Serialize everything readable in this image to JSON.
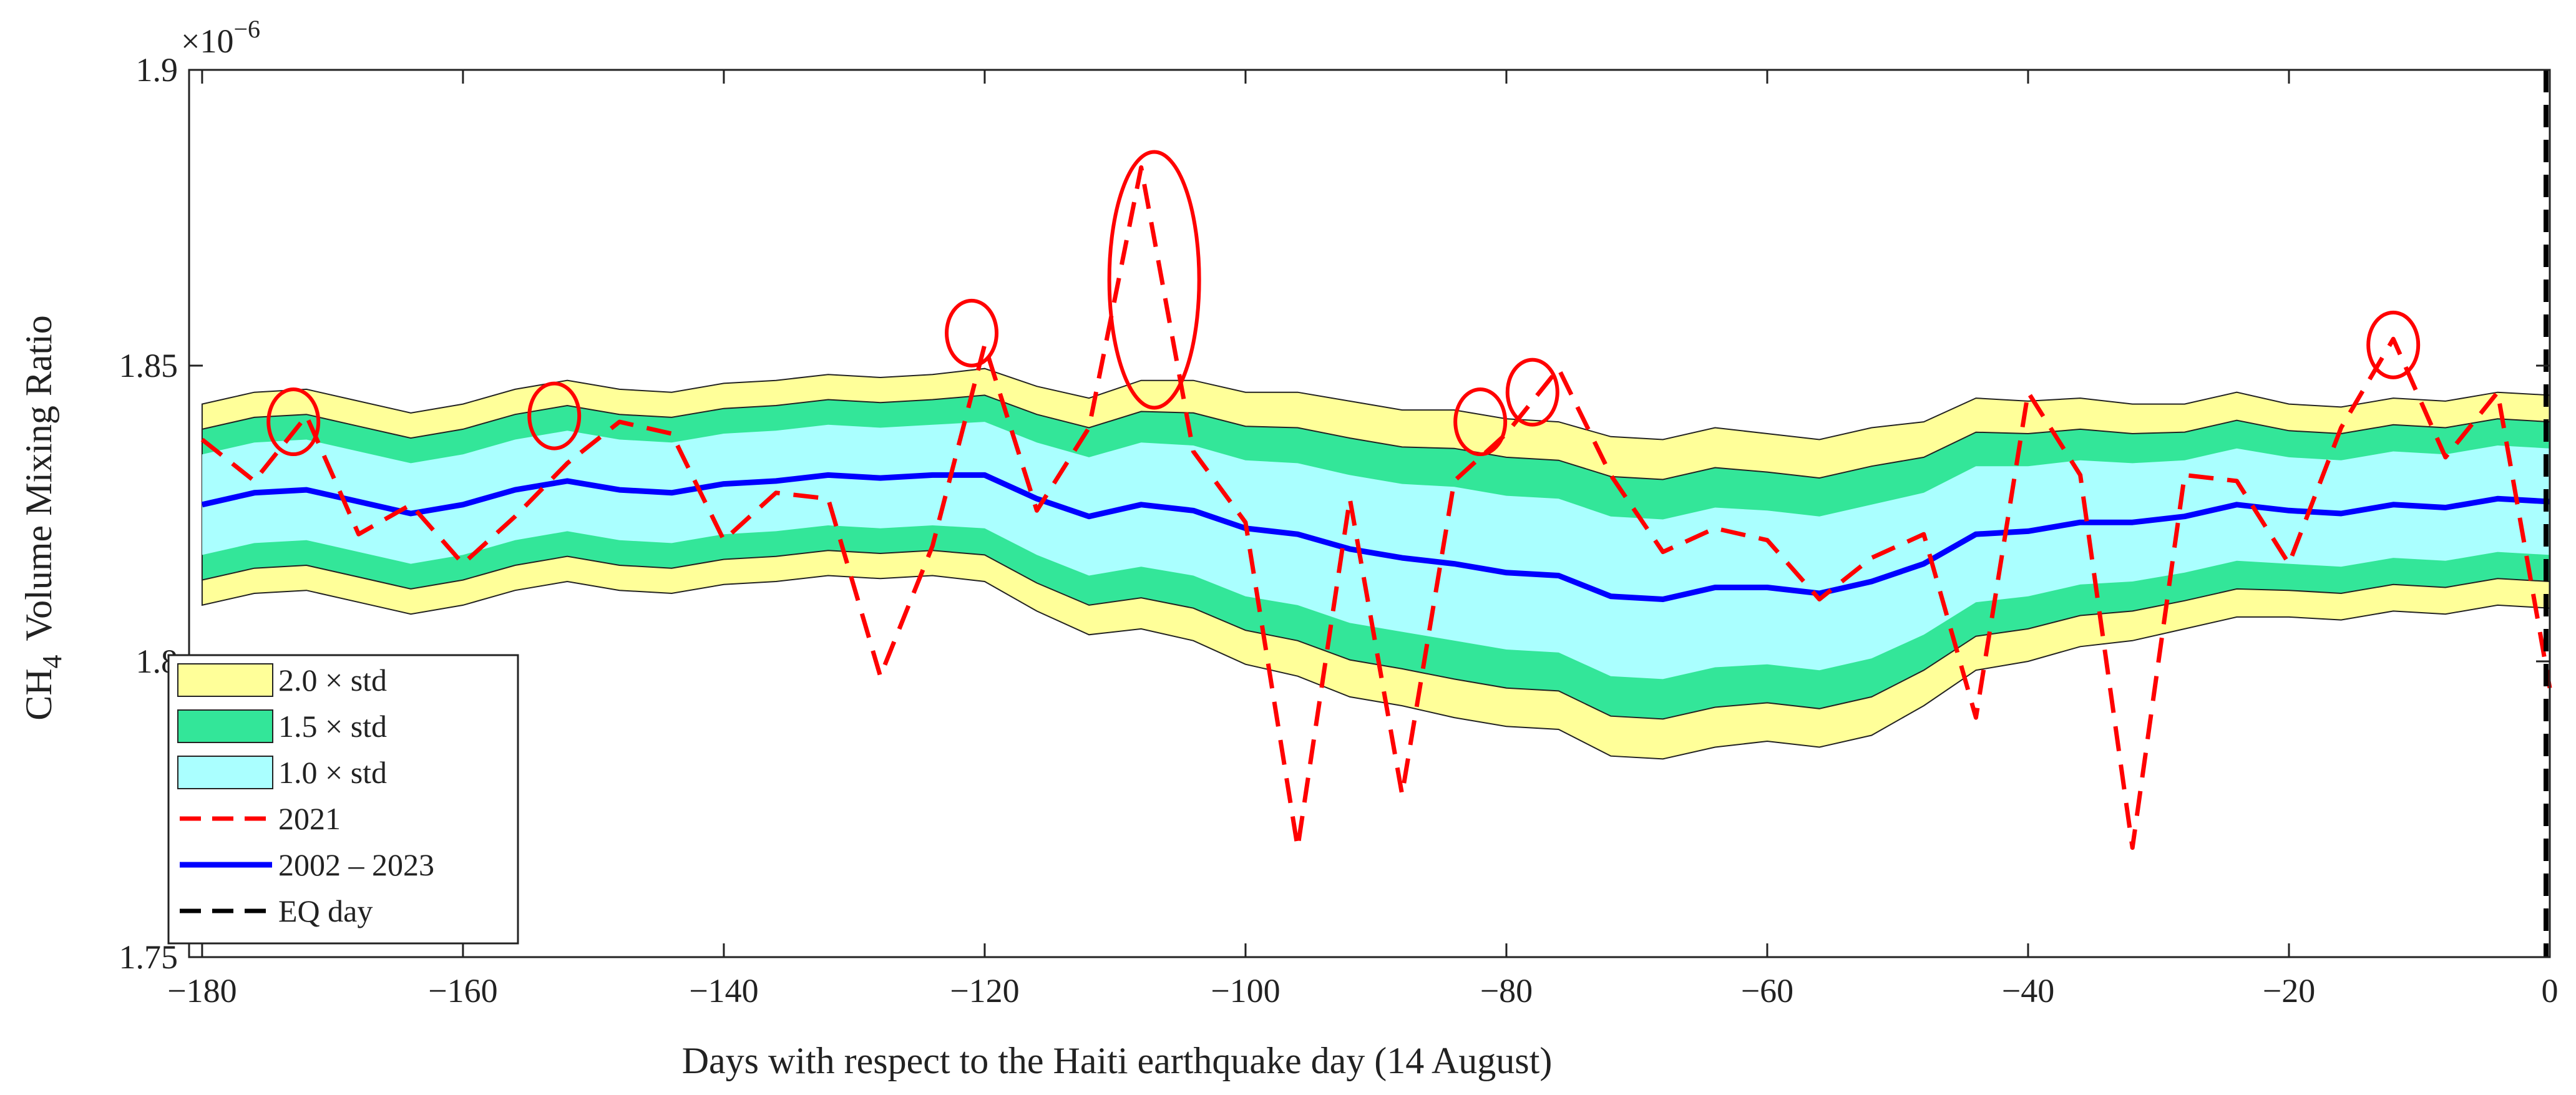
{
  "chart_data": {
    "type": "line",
    "xlabel": "Days with respect to the Haiti earthquake day (14 August)",
    "ylabel": "Volume Mixing Ratio",
    "ylabel_species": "CH",
    "ylabel_subscript": "4",
    "y_multiplier_base": "×10",
    "y_multiplier_exponent": "−6",
    "xlim": [
      -181,
      0
    ],
    "ylim": [
      1.75,
      1.9
    ],
    "xticks": [
      -180,
      -160,
      -140,
      -120,
      -100,
      -80,
      -60,
      -40,
      -20,
      0
    ],
    "xtick_labels": [
      "−180",
      "−160",
      "−140",
      "−120",
      "−100",
      "−80",
      "−60",
      "−40",
      "−20",
      "0"
    ],
    "yticks": [
      1.75,
      1.8,
      1.85,
      1.9
    ],
    "ytick_labels": [
      "1.75",
      "1.8",
      "1.85",
      "1.9"
    ],
    "legend": [
      {
        "label": "2.0 × std",
        "kind": "patch",
        "color": "#ffff99"
      },
      {
        "label": "1.5 × std",
        "kind": "patch",
        "color": "#33e699"
      },
      {
        "label": "1.0 × std",
        "kind": "patch",
        "color": "#aaffff"
      },
      {
        "label": "2021",
        "kind": "dashed",
        "color": "#ff0000"
      },
      {
        "label": "2002 – 2023",
        "kind": "solid",
        "color": "#0000ff"
      },
      {
        "label": "EQ day",
        "kind": "dashed",
        "color": "#000000"
      }
    ],
    "legend_position": "bottom-left",
    "colors": {
      "band_2std": "#ffff99",
      "band_15std": "#33e699",
      "band_1std": "#aaffff",
      "series_2021": "#ff0000",
      "series_mean": "#0000ff",
      "eq_line": "#000000",
      "highlight": "#ff0000"
    },
    "days": [
      -180,
      -176,
      -172,
      -168,
      -164,
      -160,
      -156,
      -152,
      -148,
      -144,
      -140,
      -136,
      -132,
      -128,
      -124,
      -120,
      -116,
      -112,
      -108,
      -104,
      -100,
      -96,
      -92,
      -88,
      -84,
      -80,
      -76,
      -72,
      -68,
      -64,
      -60,
      -56,
      -52,
      -48,
      -44,
      -40,
      -36,
      -32,
      -28,
      -24,
      -20,
      -16,
      -12,
      -8,
      -4,
      0
    ],
    "series": [
      {
        "name": "2002 – 2023",
        "role": "mean",
        "values": [
          1.8265,
          1.8285,
          1.829,
          1.827,
          1.825,
          1.8265,
          1.829,
          1.8305,
          1.829,
          1.8285,
          1.83,
          1.8305,
          1.8315,
          1.831,
          1.8315,
          1.8315,
          1.8275,
          1.8245,
          1.8265,
          1.8255,
          1.8225,
          1.8215,
          1.819,
          1.8175,
          1.8165,
          1.815,
          1.8145,
          1.811,
          1.8105,
          1.8125,
          1.8125,
          1.8115,
          1.8135,
          1.8165,
          1.8215,
          1.822,
          1.8235,
          1.8235,
          1.8245,
          1.8265,
          1.8255,
          1.825,
          1.8265,
          1.826,
          1.8275,
          1.827
        ],
        "std": [
          0.0085,
          0.0085,
          0.0085,
          0.0085,
          0.0085,
          0.0085,
          0.0085,
          0.0085,
          0.0085,
          0.0085,
          0.0085,
          0.0085,
          0.0085,
          0.0085,
          0.0085,
          0.009,
          0.0095,
          0.01,
          0.0105,
          0.011,
          0.0115,
          0.012,
          0.0125,
          0.0125,
          0.013,
          0.013,
          0.013,
          0.0135,
          0.0135,
          0.0135,
          0.013,
          0.013,
          0.013,
          0.012,
          0.0115,
          0.011,
          0.0105,
          0.01,
          0.0095,
          0.0095,
          0.009,
          0.009,
          0.009,
          0.009,
          0.009,
          0.009
        ]
      },
      {
        "name": "2021",
        "role": "observed",
        "values": [
          1.8375,
          1.8305,
          1.8415,
          1.8215,
          1.8265,
          1.8165,
          1.8245,
          1.8335,
          1.8405,
          1.8385,
          1.8205,
          1.8285,
          1.8275,
          1.7975,
          1.8195,
          1.8535,
          1.8255,
          1.8395,
          1.8835,
          1.8355,
          1.8235,
          1.7685,
          1.8275,
          1.7775,
          1.8305,
          1.8385,
          1.8495,
          1.8315,
          1.8185,
          1.8225,
          1.8205,
          1.8105,
          1.8175,
          1.8215,
          1.7905,
          1.8455,
          1.8315,
          1.7685,
          1.8315,
          1.8305,
          1.8165,
          1.8395,
          1.8545,
          1.8345,
          1.8455,
          1.7955
        ]
      }
    ],
    "eq_day": 0,
    "highlighted_points": [
      {
        "day": -173,
        "value": 1.8405
      },
      {
        "day": -153,
        "value": 1.8415
      },
      {
        "day": -121,
        "value": 1.8555
      },
      {
        "day": -107,
        "value": 1.8645
      },
      {
        "day": -82,
        "value": 1.8405
      },
      {
        "day": -78,
        "value": 1.8455
      },
      {
        "day": -12,
        "value": 1.8535
      }
    ]
  }
}
